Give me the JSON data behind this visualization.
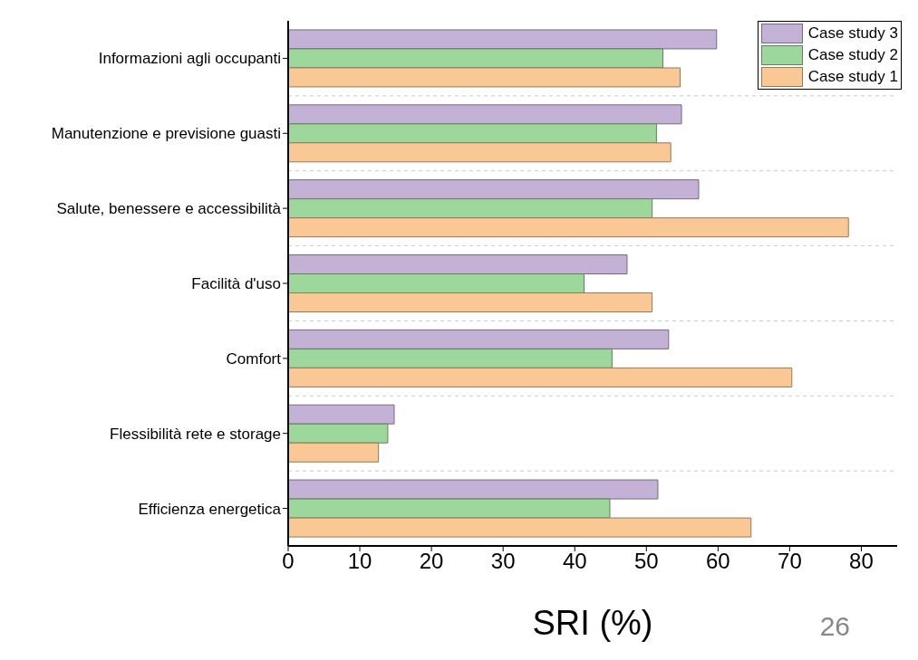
{
  "chart_data": {
    "type": "bar",
    "orientation": "horizontal",
    "xlabel": "SRI (%)",
    "categories": [
      "Informazioni agli occupanti",
      "Manutenzione e previsione guasti",
      "Salute, benessere e accessibilità",
      "Facilità d'uso",
      "Comfort",
      "Flessibilità rete e storage",
      "Efficienza energetica"
    ],
    "series": [
      {
        "name": "Case study 3",
        "color": "#c3b1d6",
        "values": [
          59.8,
          54.9,
          57.3,
          47.3,
          53.1,
          14.8,
          51.6
        ]
      },
      {
        "name": "Case study 2",
        "color": "#9ed79b",
        "values": [
          52.3,
          51.4,
          50.8,
          41.3,
          45.2,
          13.9,
          44.9
        ]
      },
      {
        "name": "Case study 1",
        "color": "#fac895",
        "values": [
          54.7,
          53.4,
          78.2,
          50.8,
          70.3,
          12.6,
          64.6
        ]
      }
    ],
    "xlim": [
      0,
      85
    ],
    "xticks": [
      0,
      10,
      20,
      30,
      40,
      50,
      60,
      70,
      80
    ],
    "grid": "y",
    "legend": "top right",
    "annotations": [
      "26"
    ]
  }
}
